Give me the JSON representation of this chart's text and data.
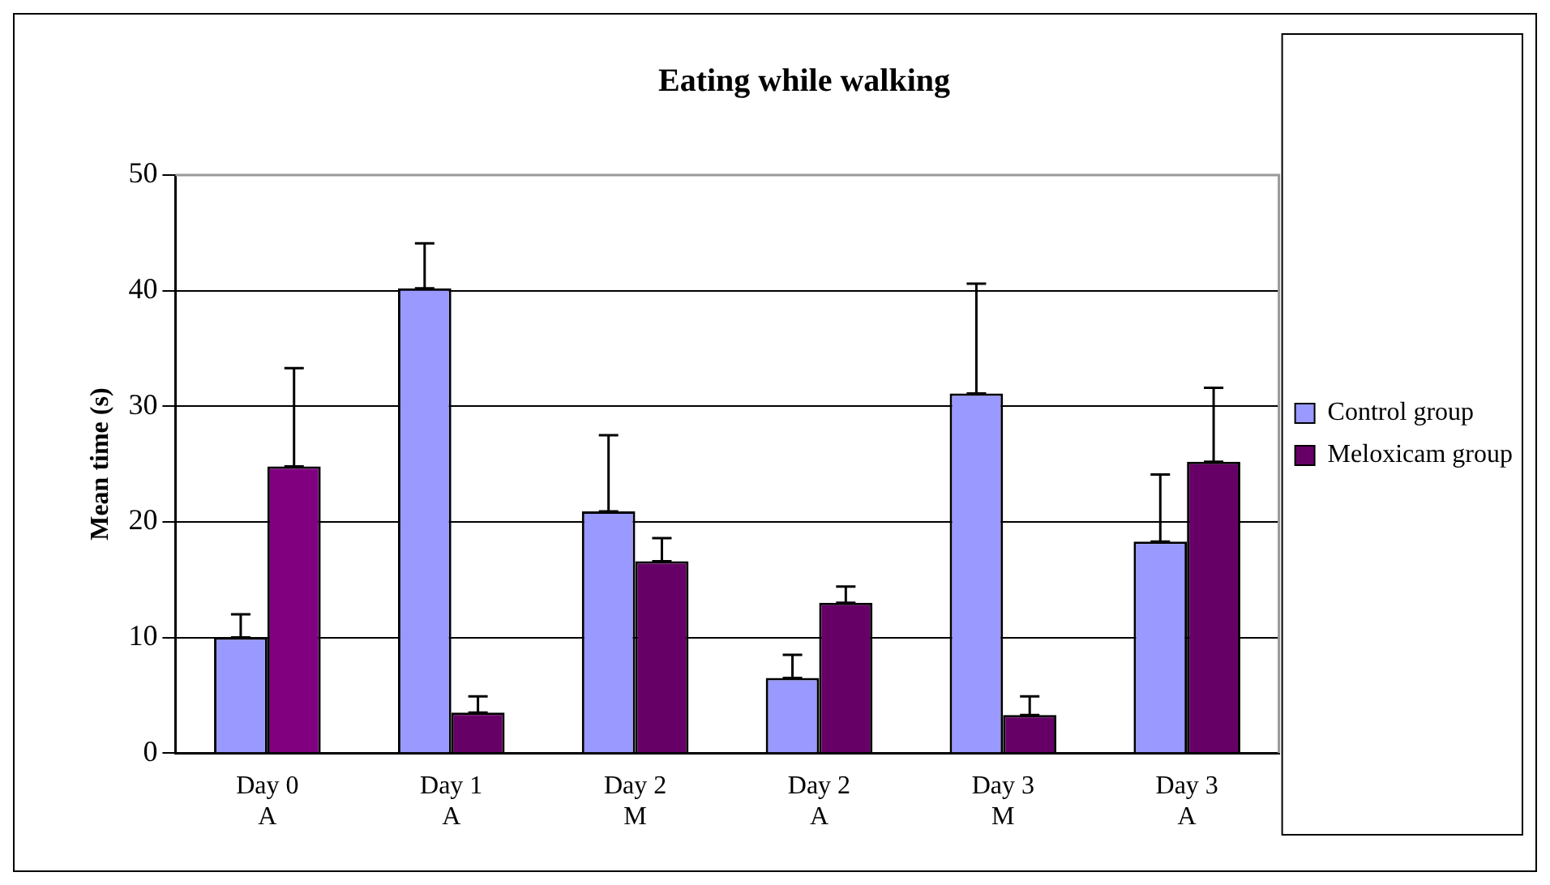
{
  "chart_data": {
    "type": "bar",
    "title": "Eating while walking",
    "ylabel": "Mean time (s)",
    "categories": [
      "Day 0\nA",
      "Day 1\nA",
      "Day 2\nM",
      "Day 2\nA",
      "Day 3\nM",
      "Day 3\nA"
    ],
    "series": [
      {
        "name": "Control group",
        "color": "#9999ff",
        "values": [
          10.0,
          40.2,
          20.9,
          6.5,
          31.1,
          18.3
        ],
        "errors": [
          [
            10.0,
            12.0
          ],
          [
            40.2,
            44.1
          ],
          [
            20.9,
            27.5
          ],
          [
            6.5,
            8.5
          ],
          [
            31.1,
            40.6
          ],
          [
            18.3,
            24.1
          ]
        ]
      },
      {
        "name": "Meloxicam group",
        "color": "#660066",
        "colors": [
          "#800080",
          "#660066",
          "#660066",
          "#660066",
          "#660066",
          "#660066"
        ],
        "values": [
          24.8,
          3.5,
          16.6,
          13.0,
          3.3,
          25.2
        ],
        "errors": [
          [
            24.8,
            33.3
          ],
          [
            3.5,
            4.9
          ],
          [
            16.6,
            18.6
          ],
          [
            13.0,
            14.4
          ],
          [
            3.3,
            4.9
          ],
          [
            25.2,
            31.6
          ]
        ]
      }
    ],
    "ylim": [
      0,
      50
    ],
    "yticks": [
      0,
      10,
      20,
      30,
      40,
      50
    ],
    "grid": "y",
    "legend": "right"
  }
}
